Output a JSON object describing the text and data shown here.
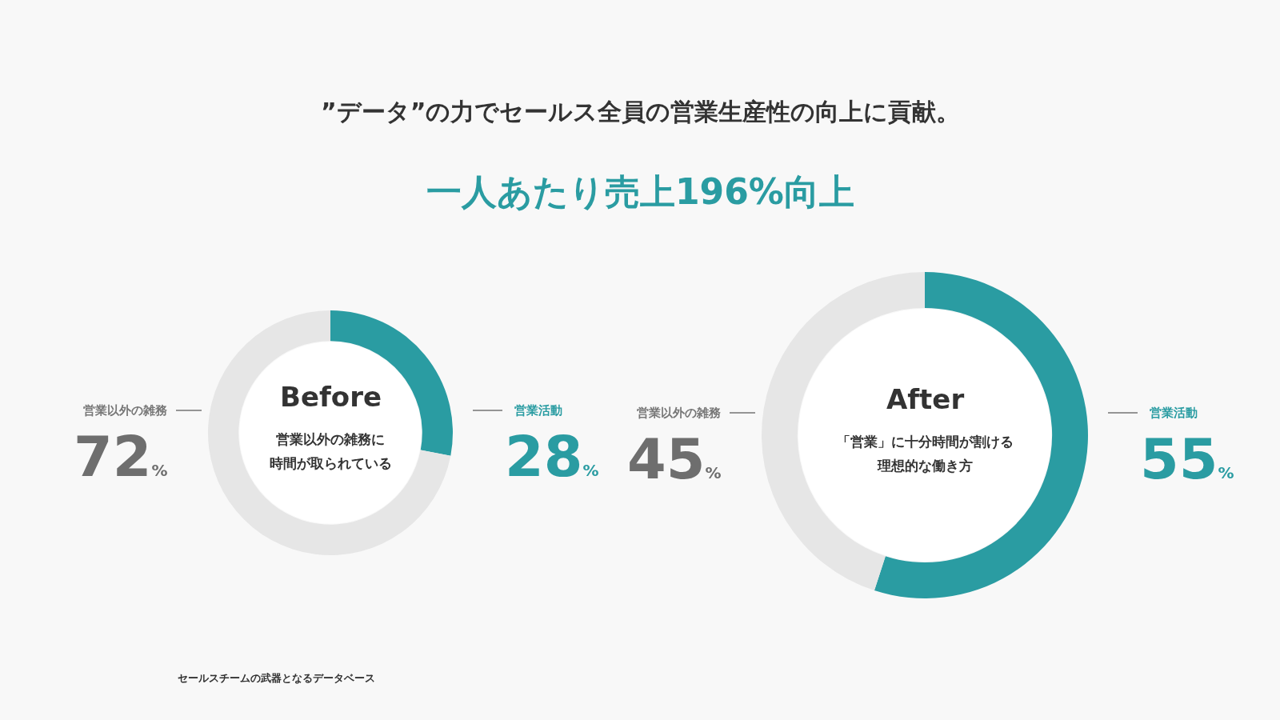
{
  "chart_data": [
    {
      "type": "other",
      "title": "”データ”の力でセールス全員の営業生産性の向上に貢献。",
      "subtitle": "一人あたり売上196%向上",
      "annotations": [
        "セールスチームの武器となるデータベース"
      ]
    },
    {
      "type": "donut",
      "title": "Before",
      "annotations": [
        "営業以外の雑務に",
        "時間が取られている"
      ],
      "categories": [
        "営業活動",
        "営業以外の雑務"
      ],
      "values": [
        28,
        72
      ],
      "colors": [
        "#2a9ca2",
        "#e6e6e6"
      ],
      "value_labels": [
        "28%",
        "72%"
      ]
    },
    {
      "type": "donut",
      "title": "After",
      "annotations": [
        "「営業」に十分時間が割ける",
        "理想的な働き方"
      ],
      "categories": [
        "営業活動",
        "営業以外の雑務"
      ],
      "values": [
        55,
        45
      ],
      "colors": [
        "#2a9ca2",
        "#e6e6e6"
      ],
      "value_labels": [
        "55%",
        "45%"
      ]
    }
  ]
}
